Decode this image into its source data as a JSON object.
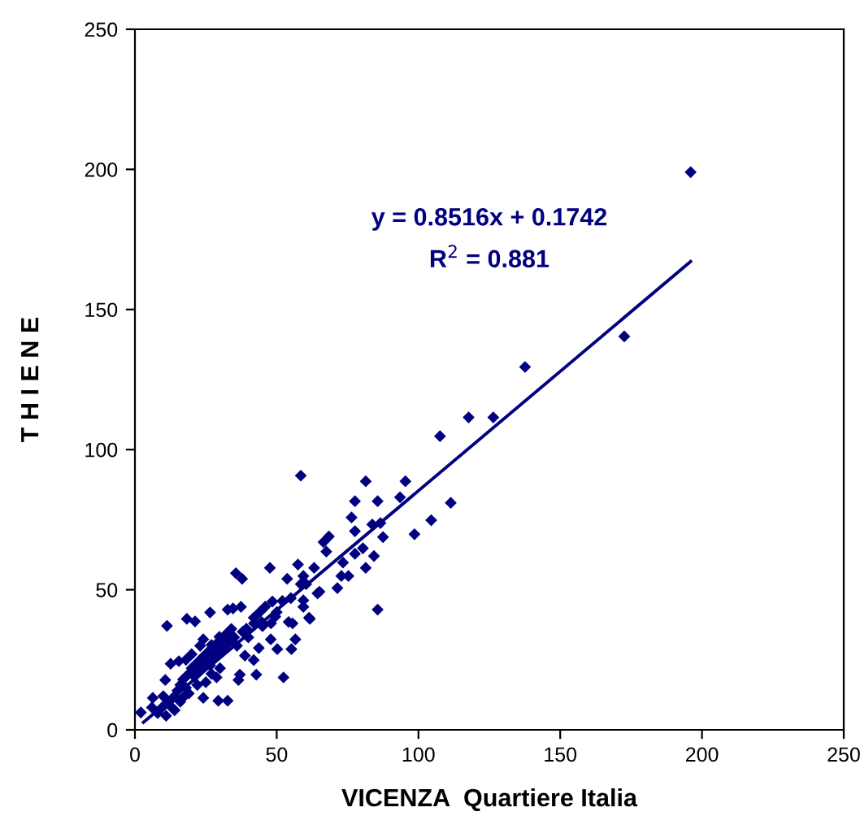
{
  "chart_data": {
    "type": "scatter",
    "xlabel": "VICENZA  Quartiere Italia",
    "ylabel": "T H I E N E",
    "xlim": [
      0,
      250
    ],
    "ylim": [
      0,
      250
    ],
    "xticks": [
      0,
      50,
      100,
      150,
      200,
      250
    ],
    "yticks": [
      0,
      50,
      100,
      150,
      200,
      250
    ],
    "grid": false,
    "annotations": [
      "y = 0.8516x + 0.1742",
      "R$^{2}$ = 0.881"
    ],
    "series": [
      {
        "color": "#000080",
        "marker": "diamond",
        "x": [
          196,
          172.6,
          137.6,
          126.4,
          117.7,
          107.6,
          111.4,
          104.5,
          98.6,
          95.4,
          81.4,
          58.5,
          77.6,
          85.6,
          93.5,
          76.4,
          83.7,
          86.6,
          87.5,
          77.6,
          68.4,
          66.5,
          67.5,
          80.4,
          77.6,
          84.3,
          81.4,
          73.4,
          72.8,
          75.3,
          71.4,
          85.6,
          63.2,
          57.5,
          59.4,
          58.5,
          60.4,
          64.4,
          59.4,
          59.4,
          61.4,
          55.6,
          56.6,
          2.1,
          11.3,
          18.3,
          21.2,
          26.5,
          32.7,
          34.6,
          37.4,
          35.6,
          37.8,
          47.6,
          53.7,
          65.1,
          61.7,
          54.2,
          48.5,
          47.9,
          55.2,
          50.2,
          43.7,
          38.8,
          41.9,
          42.8,
          37,
          36.5,
          52.4,
          32.7,
          29.4,
          24.1,
          17.4,
          6.3,
          9.7,
          12.6,
          15.5,
          10.7,
          28.8,
          26.5,
          29.8,
          24.1,
          27,
          39.3,
          44.7,
          49.5,
          41.9,
          12,
          14,
          15,
          16,
          17,
          18,
          19,
          20,
          21,
          22,
          23,
          24,
          25,
          26,
          27,
          28,
          29,
          30,
          31,
          32,
          33,
          34,
          35,
          13,
          16,
          19,
          22,
          25,
          20,
          23,
          18,
          8,
          6,
          10,
          11,
          14,
          38,
          40,
          42,
          45,
          30,
          27,
          36,
          44,
          46,
          50,
          52,
          55,
          48
        ],
        "values": [
          199,
          140.4,
          129.5,
          111.5,
          111.5,
          104.8,
          81,
          74.8,
          69.8,
          88.7,
          88.7,
          90.7,
          81.6,
          81.6,
          83,
          75.8,
          73.3,
          73.8,
          68.8,
          70.9,
          69,
          67,
          63.6,
          64.8,
          62.8,
          62,
          57.8,
          59.7,
          54.9,
          54.9,
          50.6,
          42.9,
          57.8,
          59,
          54.9,
          52,
          52,
          48.7,
          46.2,
          43.9,
          40,
          38,
          32.3,
          6.2,
          37.1,
          39.6,
          38.7,
          41.9,
          42.9,
          43.3,
          43.9,
          55.9,
          53.9,
          57.8,
          53.9,
          49.3,
          39.6,
          38.5,
          45.8,
          32.3,
          28.8,
          28.8,
          29.2,
          26.5,
          24.9,
          19.7,
          19.7,
          17.8,
          18.7,
          10.4,
          10.4,
          11.4,
          12,
          11.4,
          8.1,
          23.6,
          24.5,
          17.8,
          18.7,
          23,
          33.2,
          32.3,
          30.3,
          36.1,
          38.5,
          40.4,
          40,
          10,
          12,
          14,
          16,
          18,
          15,
          20,
          22,
          19,
          24,
          21,
          26,
          23,
          28,
          25,
          30,
          27,
          32,
          29,
          34,
          31,
          36,
          33,
          8,
          10,
          13,
          16,
          17,
          27,
          30,
          25,
          6,
          8,
          12,
          5,
          7,
          35,
          33,
          38,
          37,
          22,
          20,
          30,
          42,
          44,
          42,
          46,
          47,
          38
        ]
      },
      {
        "type": "line",
        "color": "#000080",
        "x": [
          3,
          196
        ],
        "values": [
          2.7,
          167.1
        ]
      }
    ]
  }
}
